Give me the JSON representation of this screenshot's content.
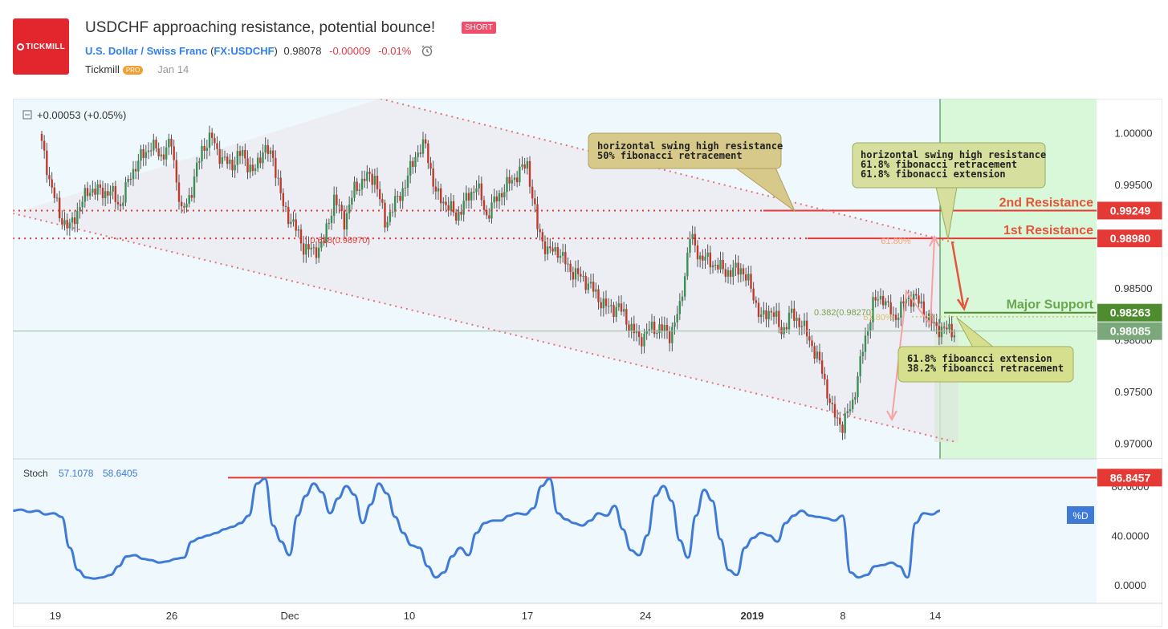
{
  "header": {
    "logo_text": "TICKMILL",
    "title": "USDCHF approaching resistance, potential bounce!",
    "badge": "SHORT",
    "symbol_name": "U.S. Dollar / Swiss Franc",
    "symbol_code": "FX:USDCHF",
    "price": "0.98078",
    "change": "-0.00009",
    "change_pct": "-0.01%",
    "author": "Tickmill",
    "author_badge": "PRO",
    "publish_date": "Jan 14"
  },
  "colors": {
    "resistance": "#e53935",
    "support": "#4e8c2f",
    "line": "#e57373",
    "stoch": "#3f7bd6",
    "panel_bg": "#eef8fd",
    "green_zone": "#d9f7d9"
  },
  "chart_data": [
    {
      "type": "candlestick",
      "series_label": "+0.00053 (+0.05%)",
      "y_ticks": [
        "1.00000",
        "0.99500",
        "0.99000",
        "0.98500",
        "0.98000",
        "0.97500",
        "0.97000"
      ],
      "ylim": [
        0.9685,
        1.0033
      ],
      "x_ticks": [
        "19",
        "26",
        "Dec",
        "10",
        "17",
        "24",
        "2019",
        "8",
        "14"
      ],
      "price_path": [
        0.9999,
        0.9956,
        0.992,
        0.9908,
        0.993,
        0.9946,
        0.9943,
        0.9943,
        0.993,
        0.996,
        0.9976,
        0.9988,
        0.9978,
        0.999,
        0.9921,
        0.9945,
        0.9985,
        0.9995,
        0.9973,
        0.997,
        0.9981,
        0.996,
        0.9984,
        0.9977,
        0.9928,
        0.9912,
        0.989,
        0.9885,
        0.9895,
        0.9937,
        0.9915,
        0.9945,
        0.9956,
        0.9958,
        0.9913,
        0.9932,
        0.995,
        0.9979,
        0.9988,
        0.9941,
        0.9932,
        0.9919,
        0.9935,
        0.995,
        0.992,
        0.9937,
        0.9949,
        0.996,
        0.997,
        0.9908,
        0.9885,
        0.9887,
        0.987,
        0.9862,
        0.9855,
        0.984,
        0.983,
        0.9832,
        0.9815,
        0.98,
        0.981,
        0.9812,
        0.9805,
        0.983,
        0.99,
        0.988,
        0.9876,
        0.9869,
        0.9865,
        0.987,
        0.985,
        0.982,
        0.983,
        0.9808,
        0.9825,
        0.9815,
        0.9795,
        0.977,
        0.973,
        0.9717,
        0.974,
        0.979,
        0.9835,
        0.9842,
        0.982,
        0.9835,
        0.9843,
        0.9828,
        0.9813,
        0.981,
        0.98085
      ],
      "levels": [
        {
          "name": "2nd Resistance",
          "value": 0.99249,
          "label": "0.99249",
          "color": "#e53935"
        },
        {
          "name": "1st Resistance",
          "value": 0.9898,
          "label": "0.98980",
          "color": "#e53935"
        },
        {
          "name": "Major Support",
          "value": 0.98263,
          "label": "0.98263",
          "color": "#4e8c2f"
        },
        {
          "name": "",
          "value": 0.98085,
          "label": "0.98085",
          "color": "#7aa87a"
        }
      ],
      "fib_labels": [
        "0.618(0.98970)",
        "61.80%",
        "0.382(0.98270)",
        "61.80%"
      ],
      "annotations": [
        {
          "lines": [
            "horizontal swing high resistance",
            "50% fibonacci retracement"
          ]
        },
        {
          "lines": [
            "horizontal swing high resistance",
            "61.8% fibonacci retracement",
            "61.8% fibonacci extension"
          ]
        },
        {
          "lines": [
            "61.8% fiboancci extension",
            "38.2% fiboancci retracement"
          ]
        }
      ]
    },
    {
      "type": "line",
      "title": "Stoch",
      "value_k": "57.1078",
      "value_d": "58.6405",
      "legend": "%D",
      "max_level": 86.8457,
      "max_label": "86.8457",
      "y_ticks": [
        "80.0000",
        "40.0000",
        "0.0000"
      ],
      "ylim": [
        -15,
        102
      ],
      "values": [
        60,
        61,
        59,
        60,
        57,
        58,
        55,
        30,
        12,
        6,
        5,
        6,
        8,
        15,
        23,
        24,
        21,
        20,
        18,
        19,
        21,
        22,
        35,
        38,
        40,
        42,
        45,
        47,
        50,
        56,
        82,
        86,
        48,
        35,
        24,
        56,
        72,
        82,
        75,
        58,
        70,
        80,
        73,
        50,
        65,
        82,
        74,
        55,
        42,
        32,
        30,
        15,
        6,
        10,
        23,
        30,
        24,
        42,
        50,
        52,
        52,
        56,
        58,
        57,
        62,
        80,
        86,
        58,
        53,
        50,
        48,
        52,
        58,
        56,
        64,
        45,
        28,
        24,
        40,
        72,
        80,
        68,
        36,
        22,
        56,
        77,
        68,
        37,
        12,
        8,
        30,
        38,
        42,
        40,
        35,
        50,
        56,
        60,
        56,
        55,
        54,
        52,
        56,
        10,
        6,
        8,
        15,
        16,
        18,
        15,
        6,
        50,
        58,
        57,
        60
      ]
    }
  ]
}
